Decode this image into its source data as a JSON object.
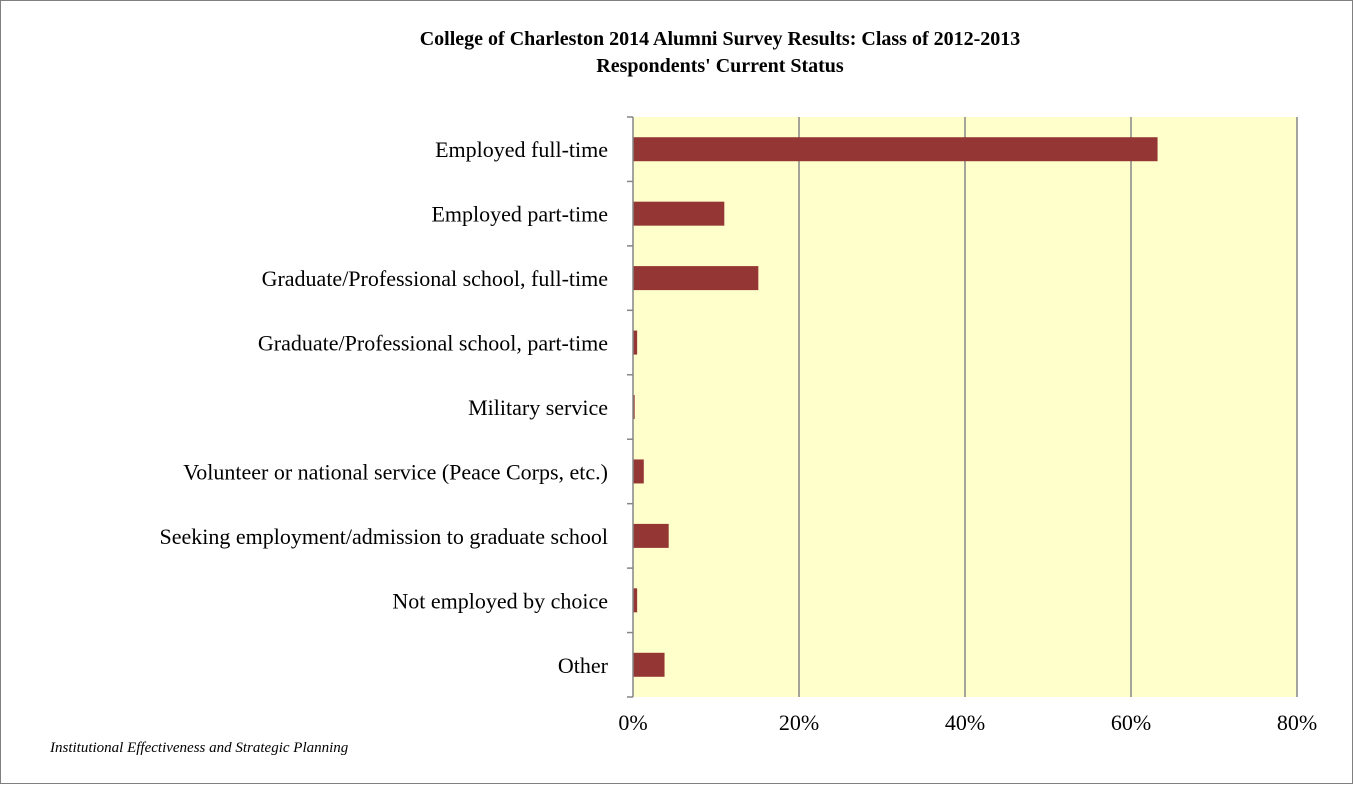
{
  "chart_data": {
    "type": "bar",
    "orientation": "horizontal",
    "title": "College of Charleston 2014 Alumni Survey Results: Class of 2012-2013",
    "subtitle": "Respondents' Current Status",
    "categories": [
      "Employed full-time",
      "Employed part-time",
      "Graduate/Professional school, full-time",
      "Graduate/Professional school, part-time",
      "Military service",
      "Volunteer or national service (Peace Corps, etc.)",
      "Seeking employment/admission to graduate school",
      "Not employed by choice",
      "Other"
    ],
    "values": [
      63.2,
      11.0,
      15.1,
      0.5,
      0.2,
      1.3,
      4.3,
      0.5,
      3.8
    ],
    "xlim": [
      0,
      80
    ],
    "xticks": [
      0,
      20,
      40,
      60,
      80
    ],
    "xtick_labels": [
      "0%",
      "20%",
      "40%",
      "60%",
      "80%"
    ],
    "xlabel": "",
    "ylabel": "",
    "grid": "vertical",
    "legend": "none",
    "colors": {
      "bar": "#943634",
      "plot_background": "#ffffcc",
      "gridline": "#868686"
    }
  },
  "footer": "Institutional Effectiveness and Strategic Planning"
}
